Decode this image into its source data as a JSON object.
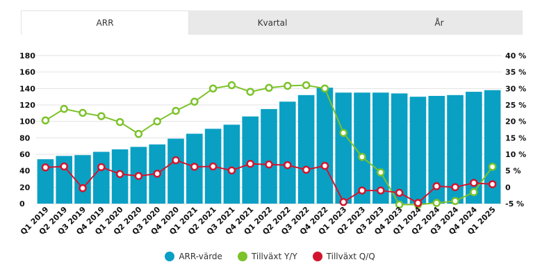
{
  "tabs": [
    {
      "label": "ARR",
      "active": true
    },
    {
      "label": "Kvartal",
      "active": false
    },
    {
      "label": "År",
      "active": false
    }
  ],
  "colors": {
    "bar": "#0aa0c4",
    "yoy": "#7cc22a",
    "qoq": "#d2152e"
  },
  "chart_data": {
    "type": "bar",
    "categories": [
      "Q1 2019",
      "Q2 2019",
      "Q3 2019",
      "Q4 2019",
      "Q1 2020",
      "Q2 2020",
      "Q3 2020",
      "Q4 2020",
      "Q1 2021",
      "Q2 2021",
      "Q3 2021",
      "Q4 2021",
      "Q1 2022",
      "Q2 2022",
      "Q3 2022",
      "Q4 2022",
      "Q1 2023",
      "Q2 2023",
      "Q3 2023",
      "Q4 2023",
      "Q1 2024",
      "Q2 2024",
      "Q3 2024",
      "Q4 2024",
      "Q1 2025"
    ],
    "left_axis": {
      "ticks": [
        "0",
        "20",
        "40",
        "60",
        "80",
        "100",
        "120",
        "140",
        "160",
        "180"
      ],
      "range": [
        0,
        180
      ]
    },
    "right_axis": {
      "ticks": [
        "-5 %",
        "0",
        "5 %",
        "10 %",
        "15 %",
        "20 %",
        "25 %",
        "30 %",
        "35 %",
        "40 %"
      ],
      "range": [
        -5,
        40
      ]
    },
    "series": [
      {
        "name": "ARR-värde",
        "type": "bar",
        "axis": "left",
        "values": [
          54,
          58,
          59,
          63,
          66,
          69,
          72,
          79,
          85,
          91,
          96,
          106,
          115,
          124,
          132,
          141,
          135,
          135,
          135,
          134,
          130,
          131,
          132,
          136,
          138
        ]
      },
      {
        "name": "Tillväxt Y/Y",
        "type": "line",
        "axis": "right",
        "values": [
          20.3,
          23.8,
          22.6,
          21.6,
          19.8,
          16.2,
          20.0,
          23.2,
          26.0,
          30.0,
          31.0,
          29.0,
          30.2,
          30.8,
          31.0,
          30.0,
          16.5,
          9.2,
          4.5,
          -5.3,
          -5.3,
          -4.8,
          -4.2,
          -1.5,
          6.2
        ]
      },
      {
        "name": "Tillväxt Q/Q",
        "type": "line",
        "axis": "right",
        "values": [
          6.0,
          6.3,
          -0.3,
          6.1,
          4.0,
          3.4,
          4.1,
          8.2,
          6.2,
          6.3,
          5.1,
          7.1,
          6.9,
          6.7,
          5.3,
          6.5,
          -4.5,
          -1.0,
          -1.0,
          -1.7,
          -4.8,
          0.3,
          0.0,
          1.3,
          0.9
        ]
      }
    ],
    "legend_position": "bottom-center",
    "grid": true
  }
}
